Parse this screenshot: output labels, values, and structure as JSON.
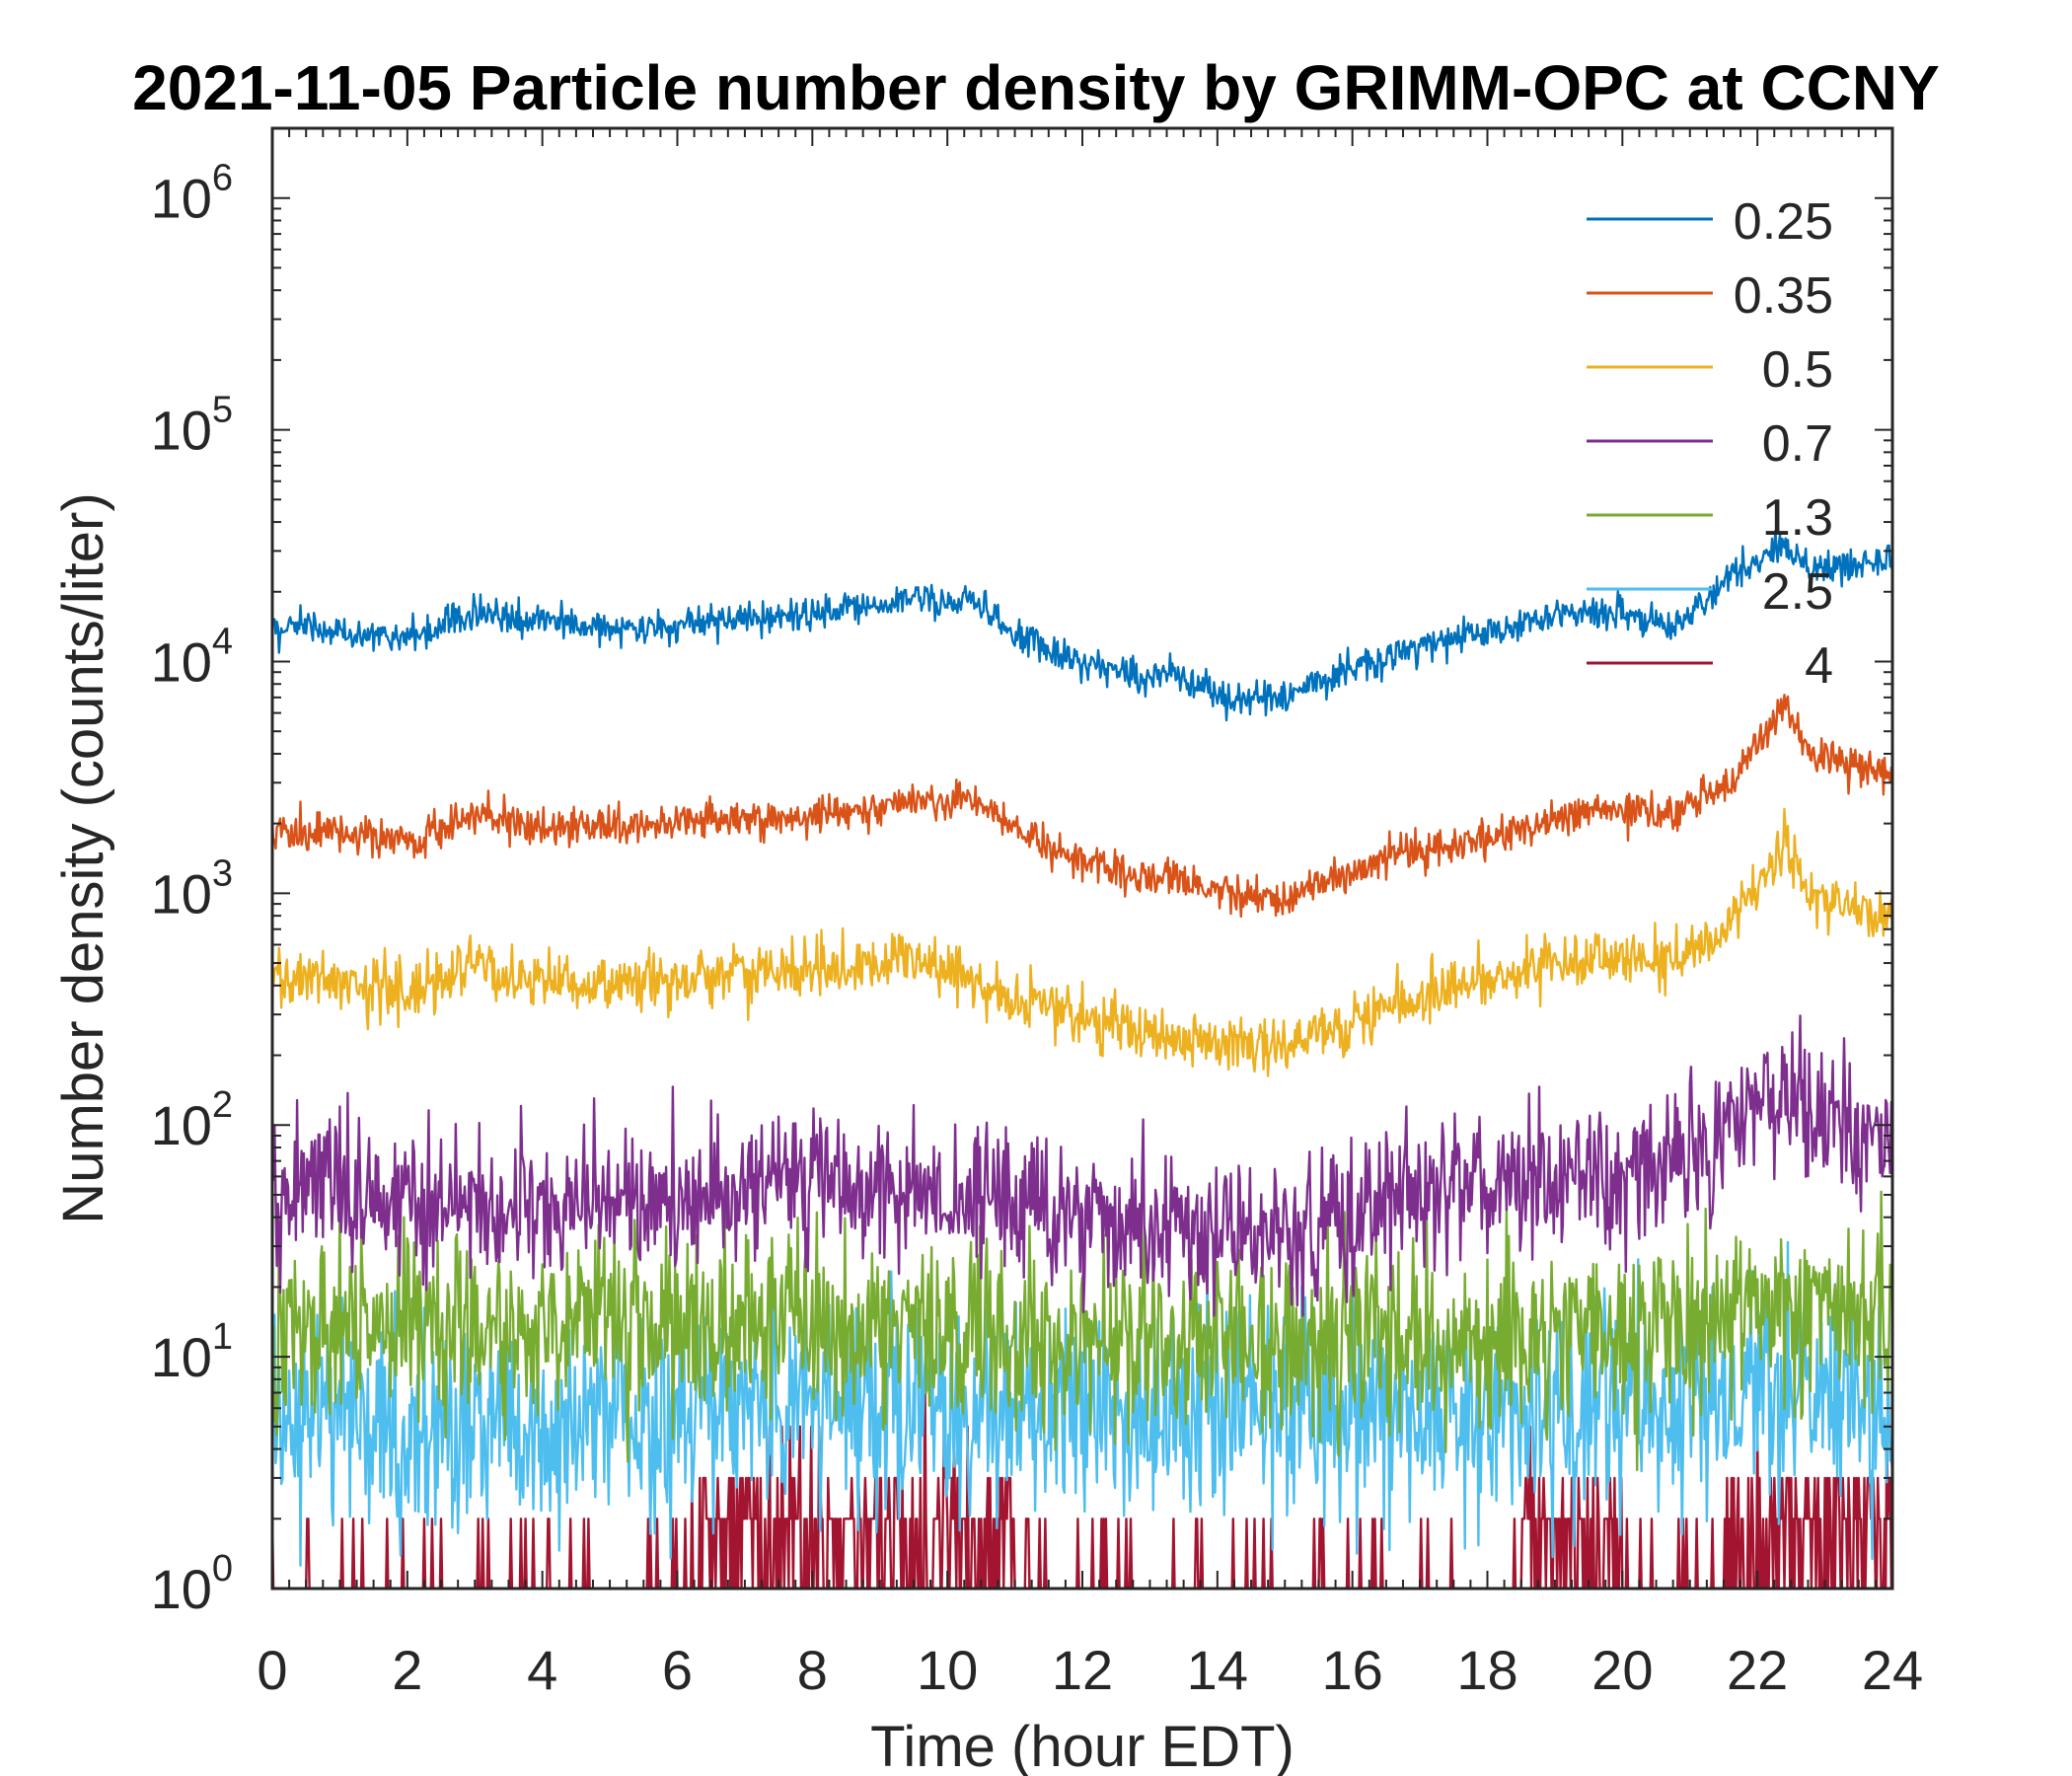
{
  "chart_data": {
    "type": "line",
    "title": "2021-11-05 Particle number density by GRIMM-OPC at CCNY",
    "xlabel": "Time (hour EDT)",
    "ylabel": "Number density (counts/liter)",
    "xlim": [
      0,
      24
    ],
    "ylim": [
      1,
      2000000
    ],
    "yscale": "log",
    "x_ticks": [
      "0",
      "2",
      "4",
      "6",
      "8",
      "10",
      "12",
      "14",
      "16",
      "18",
      "20",
      "22",
      "24"
    ],
    "y_ticks": [
      {
        "base": "10",
        "exp": "0",
        "value": 1
      },
      {
        "base": "10",
        "exp": "1",
        "value": 10
      },
      {
        "base": "10",
        "exp": "2",
        "value": 100
      },
      {
        "base": "10",
        "exp": "3",
        "value": 1000
      },
      {
        "base": "10",
        "exp": "4",
        "value": 10000
      },
      {
        "base": "10",
        "exp": "5",
        "value": 100000
      },
      {
        "base": "10",
        "exp": "6",
        "value": 1000000
      }
    ],
    "legend_position": "top-right",
    "series": [
      {
        "name": "0.25",
        "color": "#0072BD",
        "noise": 0.05,
        "x": [
          0,
          1,
          2,
          3,
          4,
          5,
          6,
          6.6,
          7,
          8,
          9,
          9.5,
          10,
          10.3,
          11,
          12,
          13,
          13.2,
          14,
          14.5,
          15,
          16,
          17,
          18,
          19,
          20,
          20.8,
          21.5,
          22,
          22.4,
          22.8,
          23,
          24
        ],
        "y": [
          14000,
          13500,
          12500,
          16500,
          15000,
          14000,
          14500,
          15000,
          15000,
          16000,
          17500,
          19000,
          17000,
          20000,
          13000,
          10000,
          8500,
          9000,
          7200,
          7000,
          7000,
          9500,
          11500,
          13500,
          16000,
          16000,
          14500,
          22000,
          27000,
          33000,
          25000,
          26000,
          28000
        ]
      },
      {
        "name": "0.35",
        "color": "#D95319",
        "noise": 0.06,
        "x": [
          0,
          1,
          2,
          3,
          4,
          5,
          6,
          6.6,
          7,
          8,
          9,
          9.5,
          10,
          10.3,
          11,
          12,
          13,
          13.2,
          14,
          14.5,
          15,
          16,
          17,
          18,
          19,
          20,
          20.8,
          21.5,
          22,
          22.4,
          22.8,
          23,
          24
        ],
        "y": [
          1900,
          1800,
          1700,
          2200,
          2000,
          1950,
          2000,
          2100,
          2000,
          2200,
          2300,
          2500,
          2400,
          2600,
          1900,
          1400,
          1150,
          1200,
          1000,
          950,
          950,
          1250,
          1500,
          1700,
          2150,
          2300,
          2200,
          2900,
          4200,
          6500,
          4000,
          3800,
          3300
        ]
      },
      {
        "name": "0.5",
        "color": "#EDB120",
        "noise": 0.09,
        "x": [
          0,
          1,
          2,
          3,
          4,
          5,
          6,
          7,
          8,
          9,
          9.5,
          10,
          11,
          12,
          13,
          14,
          14.5,
          15,
          16,
          17,
          18,
          19,
          20,
          20.8,
          21.5,
          22,
          22.4,
          22.8,
          23,
          24
        ],
        "y": [
          450,
          430,
          390,
          480,
          420,
          410,
          430,
          440,
          460,
          490,
          550,
          460,
          360,
          290,
          250,
          230,
          220,
          215,
          280,
          360,
          420,
          500,
          530,
          500,
          700,
          1000,
          1700,
          1000,
          900,
          800
        ]
      },
      {
        "name": "0.7",
        "color": "#7E2F8E",
        "noise": 0.22,
        "x": [
          0,
          2,
          4,
          6,
          8,
          10,
          12,
          14,
          15,
          16,
          18,
          20,
          21,
          22,
          22.4,
          22.8,
          24
        ],
        "y": [
          55,
          48,
          45,
          45,
          55,
          50,
          42,
          35,
          32,
          42,
          55,
          60,
          75,
          110,
          170,
          110,
          80
        ]
      },
      {
        "name": "1.3",
        "color": "#77AC30",
        "noise": 0.28,
        "x": [
          0,
          4,
          8,
          12,
          16,
          20,
          22,
          24
        ],
        "y": [
          13,
          13,
          13,
          12,
          12,
          12,
          16,
          15
        ]
      },
      {
        "name": "2.5",
        "color": "#4DBEEE",
        "noise": 0.32,
        "x": [
          0,
          4,
          8,
          12,
          16,
          20,
          22,
          24
        ],
        "y": [
          5,
          5,
          6,
          6,
          6,
          6,
          7,
          6
        ]
      },
      {
        "name": "4",
        "color": "#A2142F",
        "noise": 0.0,
        "x": [
          0,
          24
        ],
        "y": [
          1,
          1
        ]
      }
    ]
  }
}
